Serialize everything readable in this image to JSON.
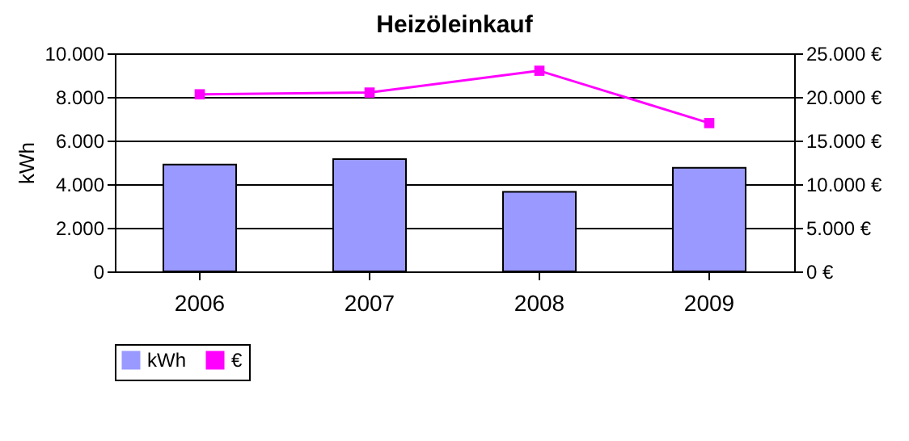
{
  "chart_data": {
    "type": "bar",
    "title": "Heizöleinkauf",
    "ylabel": "kWh",
    "categories": [
      "2006",
      "2007",
      "2008",
      "2009"
    ],
    "series": [
      {
        "name": "kWh",
        "color": "#9999ff",
        "values": [
          4900,
          5150,
          3650,
          4750
        ]
      },
      {
        "name": "€",
        "type": "line",
        "axis": "y2",
        "color": "#ff00ff",
        "marker": "square",
        "values": [
          20300,
          20500,
          23000,
          17000
        ]
      }
    ],
    "ylim": [
      0,
      10000
    ],
    "yticks": [
      0,
      {
        "value": 2000,
        "label": "2.000"
      },
      {
        "value": 4000,
        "label": "4.000"
      },
      {
        "value": 6000,
        "label": "6.000"
      },
      {
        "value": 8000,
        "label": "8.000"
      },
      {
        "value": 10000,
        "label": "10.000"
      }
    ],
    "y2lim": [
      0,
      25000
    ],
    "y2ticks": [
      {
        "value": 0,
        "label": "0 €"
      },
      {
        "value": 5000,
        "label": "5.000 €"
      },
      {
        "value": 10000,
        "label": "10.000 €"
      },
      {
        "value": 15000,
        "label": "15.000 €"
      },
      {
        "value": 20000,
        "label": "20.000 €"
      },
      {
        "value": 25000,
        "label": "25.000 €"
      }
    ],
    "grid": "y",
    "legend": "bottom"
  }
}
